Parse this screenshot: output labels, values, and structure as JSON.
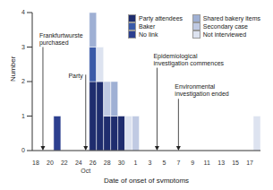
{
  "chart_data": {
    "type": "bar",
    "stacked": true,
    "xlabel": "Date of onset of symptoms",
    "ylabel": "Number",
    "categories": [
      "18",
      null,
      "20",
      null,
      "22",
      null,
      "24",
      null,
      "26",
      null,
      "28",
      null,
      "30",
      null,
      "1",
      null,
      "3",
      null,
      "5",
      null,
      "7",
      null,
      "9",
      null,
      "11",
      null,
      "13",
      null,
      "15",
      null,
      "17",
      null
    ],
    "month_labels": [
      {
        "text": "Oct",
        "x": 7
      }
    ],
    "series": [
      {
        "name": "Party attendees",
        "color": "#1f2d6e",
        "values": [
          0,
          0,
          0,
          0,
          0,
          0,
          0,
          0,
          2,
          2,
          1,
          1,
          1,
          0,
          0,
          0,
          0,
          0,
          0,
          0,
          0,
          0,
          0,
          0,
          0,
          0,
          0,
          0,
          0,
          0,
          0,
          0
        ]
      },
      {
        "name": "Baker",
        "color": "#3a5aa8",
        "values": [
          0,
          0,
          0,
          0,
          0,
          0,
          0,
          0,
          1,
          0,
          0,
          0,
          0,
          0,
          0,
          0,
          0,
          0,
          0,
          0,
          0,
          0,
          0,
          0,
          0,
          0,
          0,
          0,
          0,
          0,
          0,
          0
        ]
      },
      {
        "name": "No link",
        "color": "#2c3f8f",
        "values": [
          0,
          0,
          0,
          1,
          0,
          0,
          0,
          0,
          0,
          0,
          0,
          0,
          0,
          0,
          0,
          0,
          0,
          0,
          0,
          0,
          0,
          0,
          0,
          0,
          0,
          0,
          0,
          0,
          0,
          0,
          0,
          0
        ]
      },
      {
        "name": "Shared bakery items",
        "color": "#9fb0d4",
        "values": [
          0,
          0,
          0,
          0,
          0,
          0,
          0,
          0,
          1,
          0,
          0,
          1,
          0,
          0,
          0,
          0,
          0,
          0,
          0,
          0,
          0,
          0,
          0,
          0,
          0,
          0,
          0,
          0,
          0,
          0,
          0,
          0
        ]
      },
      {
        "name": "Secondary case",
        "color": "#c0cae3",
        "values": [
          0,
          0,
          0,
          0,
          0,
          0,
          0,
          0,
          0,
          0,
          1,
          0,
          0,
          0,
          1,
          0,
          0,
          0,
          0,
          0,
          0,
          0,
          0,
          0,
          0,
          0,
          0,
          0,
          0,
          0,
          0,
          0
        ]
      },
      {
        "name": "Not interviewed",
        "color": "#dde3f0",
        "values": [
          0,
          0,
          0,
          0,
          0,
          0,
          0,
          0,
          0,
          1,
          0,
          0,
          0,
          1,
          0,
          0,
          0,
          0,
          0,
          0,
          0,
          0,
          0,
          0,
          0,
          0,
          0,
          0,
          0,
          0,
          0,
          1
        ]
      }
    ],
    "ylim": [
      0,
      4
    ],
    "yticks": [
      0,
      1,
      2,
      3,
      4
    ],
    "grid": false,
    "legend": "upper right",
    "annotations": [
      {
        "text": "Frankfurtwurste purchased",
        "x": 1
      },
      {
        "text": "Party",
        "x": 7
      },
      {
        "text": "Epidemiological investigation commences",
        "x": 17
      },
      {
        "text": "Environmental investigation ended",
        "x": 20
      }
    ]
  }
}
